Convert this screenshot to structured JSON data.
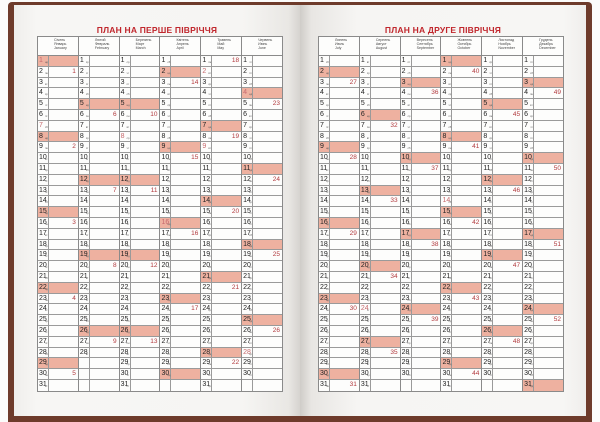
{
  "colors": {
    "cover": "#6e3b2b",
    "title": "#c0262c",
    "sunday_fill": "#eeb1a0",
    "week_number": "#b23a3e",
    "holiday_text": "#c76a6e"
  },
  "weekdays": [
    "пн",
    "вт",
    "ср",
    "чт",
    "пт",
    "сб",
    "нд"
  ],
  "pages": [
    {
      "title": "ПЛАН НА ПЕРШЕ ПІВРІЧЧЯ",
      "months": [
        {
          "names": [
            "Січень",
            "Январь",
            "January"
          ],
          "days": 31,
          "first_weekday": 6,
          "holidays": [
            1,
            7
          ],
          "weeks": {
            "2": 1,
            "9": 2,
            "16": 3,
            "23": 4,
            "30": 5
          }
        },
        {
          "names": [
            "Лютий",
            "Февраль",
            "February"
          ],
          "days": 28,
          "first_weekday": 2,
          "holidays": [],
          "weeks": {
            "6": 6,
            "13": 7,
            "20": 8,
            "27": 9
          }
        },
        {
          "names": [
            "Березень",
            "Март",
            "March"
          ],
          "days": 31,
          "first_weekday": 2,
          "holidays": [
            8
          ],
          "weeks": {
            "6": 10,
            "13": 11,
            "20": 12,
            "27": 13
          }
        },
        {
          "names": [
            "Квітень",
            "Апрель",
            "April"
          ],
          "days": 30,
          "first_weekday": 5,
          "holidays": [
            16
          ],
          "weeks": {
            "3": 14,
            "10": 15,
            "17": 16,
            "24": 17
          }
        },
        {
          "names": [
            "Травень",
            "Май",
            "May"
          ],
          "days": 31,
          "first_weekday": 0,
          "holidays": [
            2,
            9
          ],
          "weeks": {
            "1": 18,
            "8": 19,
            "15": 20,
            "22": 21,
            "29": 22
          }
        },
        {
          "names": [
            "Червень",
            "Июнь",
            "June"
          ],
          "days": 30,
          "first_weekday": 3,
          "holidays": [
            4,
            28
          ],
          "weeks": {
            "5": 23,
            "12": 24,
            "19": 25,
            "26": 26
          }
        }
      ]
    },
    {
      "title": "ПЛАН НА ДРУГЕ ПІВРІЧЧЯ",
      "months": [
        {
          "names": [
            "Липень",
            "Июль",
            "July"
          ],
          "days": 31,
          "first_weekday": 5,
          "holidays": [],
          "weeks": {
            "3": 27,
            "10": 28,
            "17": 29,
            "24": 30,
            "31": 31
          }
        },
        {
          "names": [
            "Серпень",
            "Август",
            "August"
          ],
          "days": 31,
          "first_weekday": 1,
          "holidays": [
            24
          ],
          "weeks": {
            "7": 32,
            "14": 33,
            "21": 34,
            "28": 35
          }
        },
        {
          "names": [
            "Вересень",
            "Сентябрь",
            "September"
          ],
          "days": 30,
          "first_weekday": 4,
          "holidays": [],
          "weeks": {
            "4": 36,
            "11": 37,
            "18": 38,
            "25": 39
          }
        },
        {
          "names": [
            "Жовтень",
            "Октябрь",
            "October"
          ],
          "days": 31,
          "first_weekday": 6,
          "holidays": [
            14
          ],
          "weeks": {
            "2": 40,
            "9": 41,
            "16": 42,
            "23": 43,
            "30": 44
          }
        },
        {
          "names": [
            "Листопад",
            "Ноябрь",
            "November"
          ],
          "days": 30,
          "first_weekday": 2,
          "holidays": [],
          "weeks": {
            "6": 45,
            "13": 46,
            "20": 47,
            "27": 48
          }
        },
        {
          "names": [
            "Грудень",
            "Декабрь",
            "December"
          ],
          "days": 31,
          "first_weekday": 4,
          "holidays": [],
          "weeks": {
            "4": 49,
            "11": 50,
            "18": 51,
            "25": 52
          }
        }
      ]
    }
  ]
}
